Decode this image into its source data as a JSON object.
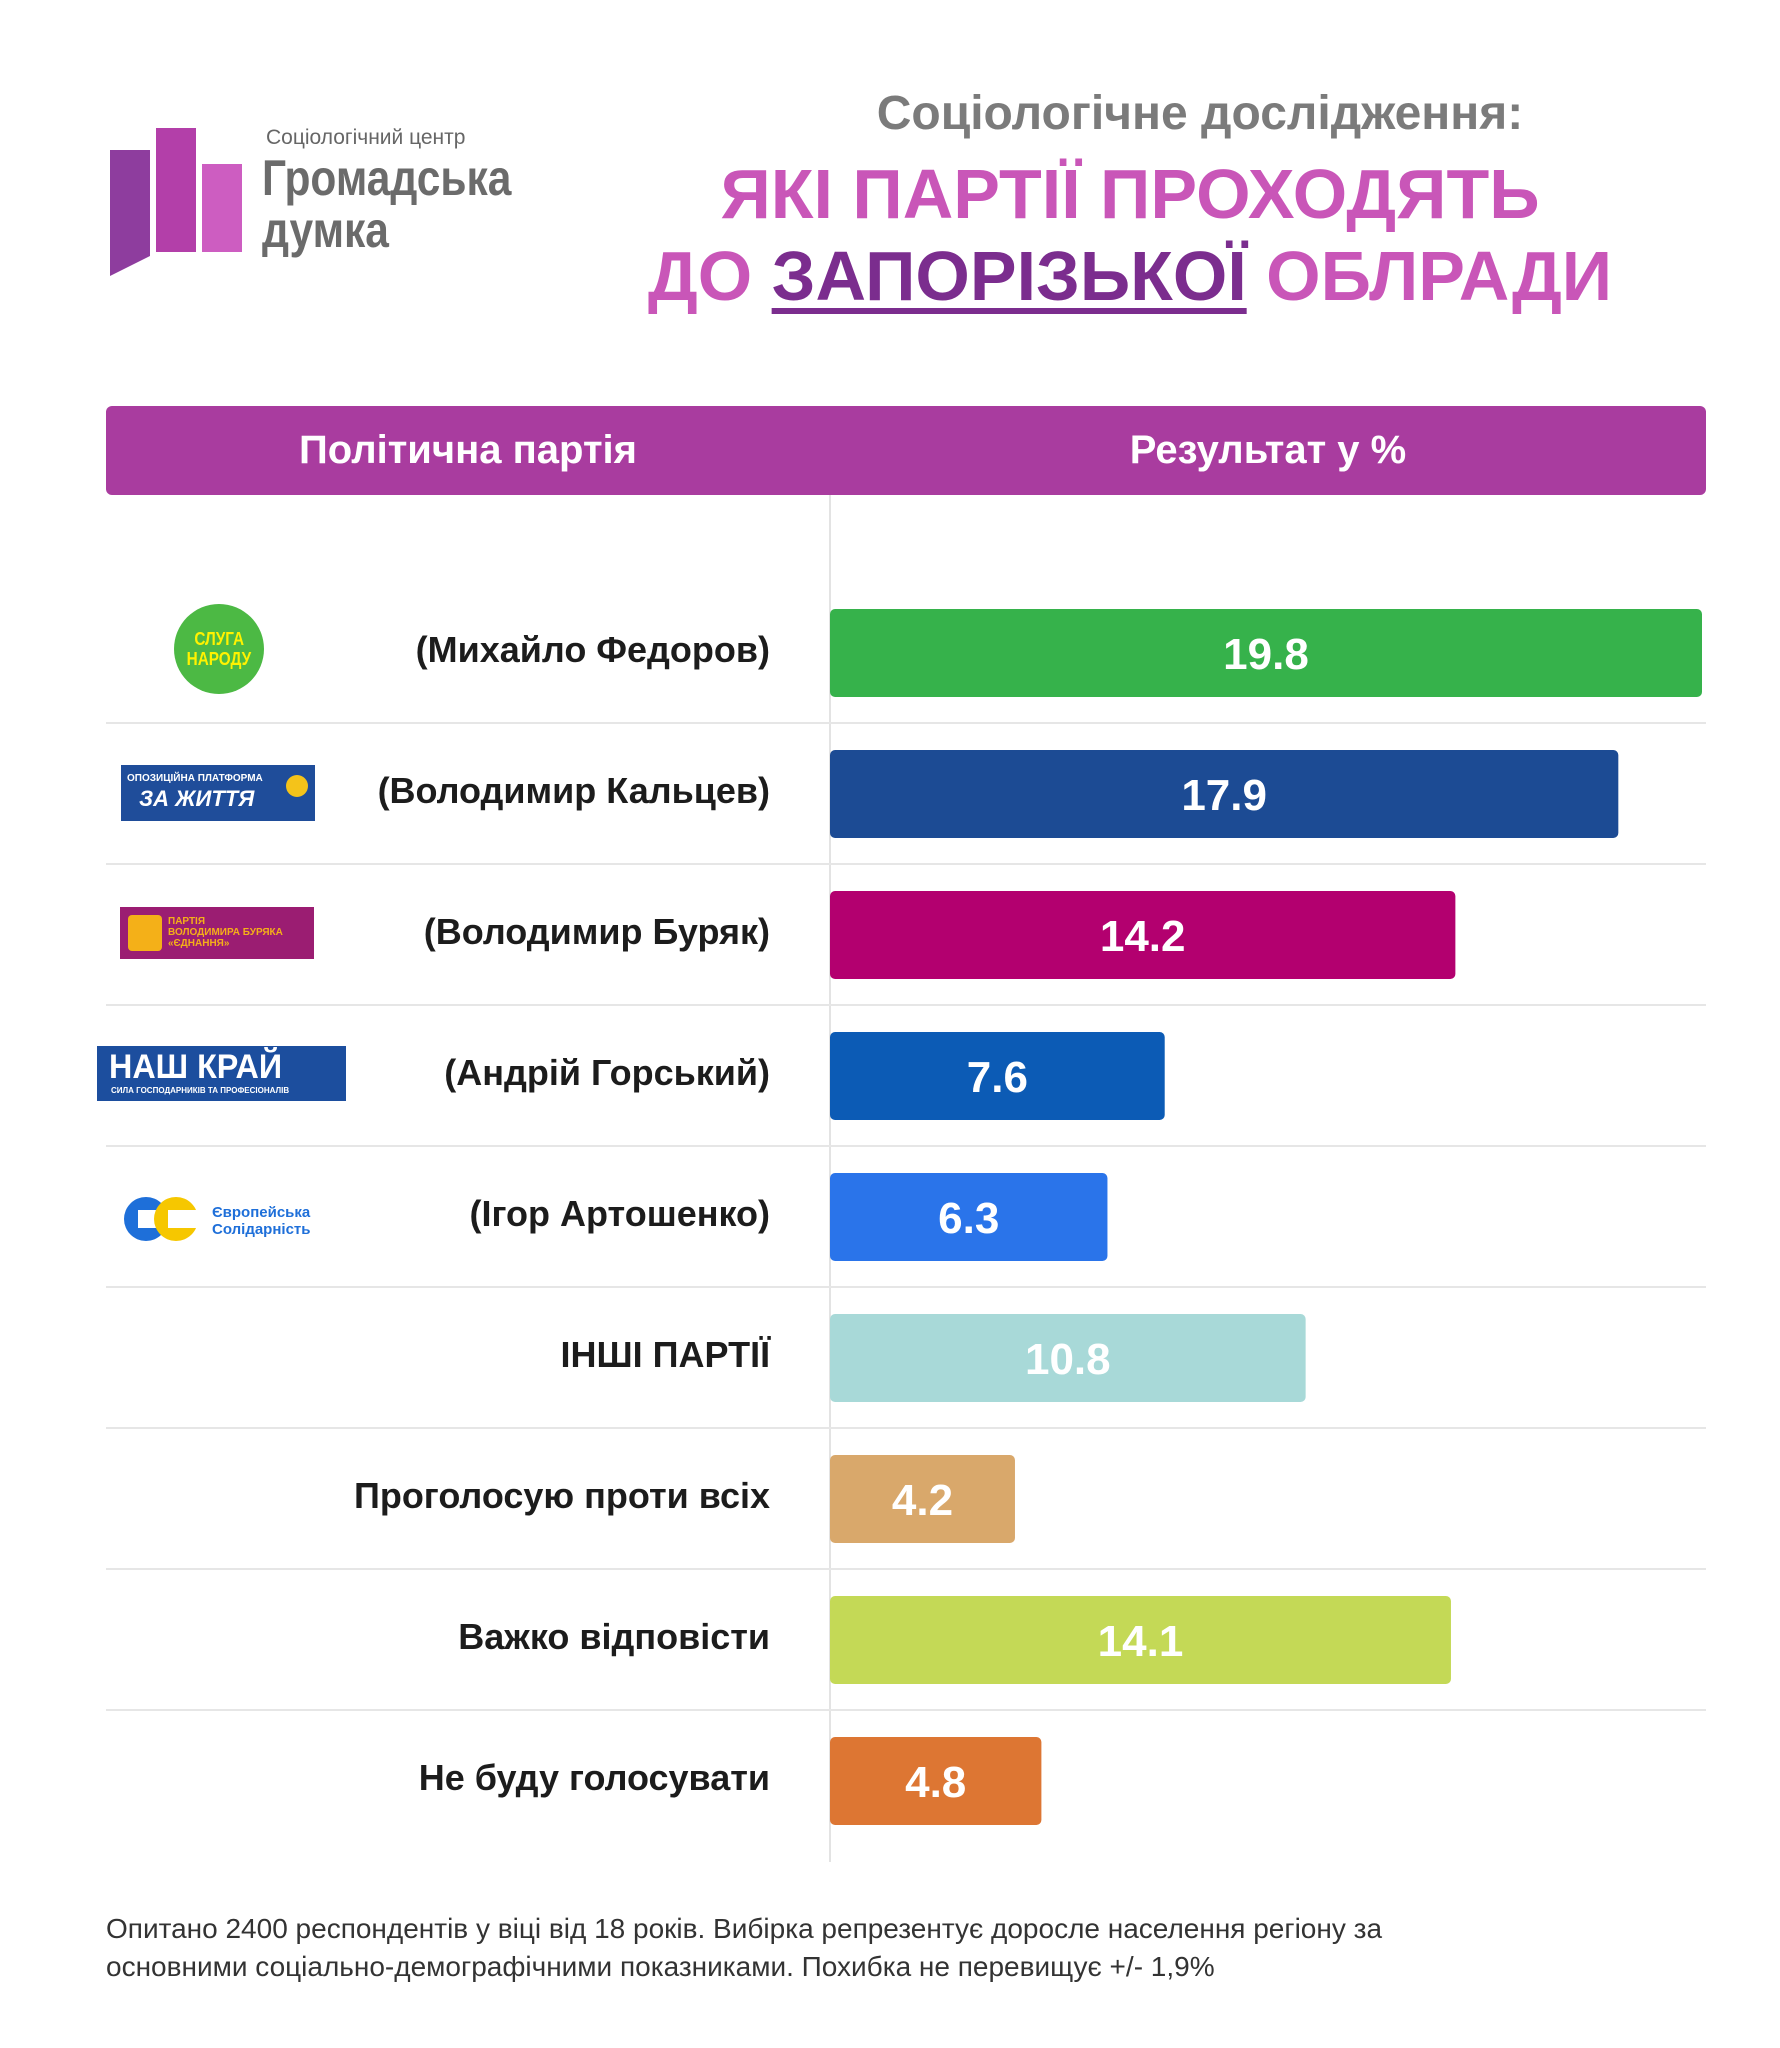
{
  "brand": {
    "subtitle": "Соціологічний центр",
    "name_line1": "Громадська",
    "name_line2": "думка",
    "colors": [
      "#8e3d9e",
      "#b33fa9",
      "#cd5dc1"
    ]
  },
  "title": {
    "line1": "Соціологічне дослідження:",
    "line2": "ЯКІ ПАРТІЇ ПРОХОДЯТЬ",
    "line3_prefix": "ДО ",
    "line3_highlight": "ЗАПОРІЗЬКОЇ",
    "line3_suffix": " ОБЛРАДИ"
  },
  "table_header": {
    "party": "Політична партія",
    "result": "Результат у %"
  },
  "logos": {
    "sluha": {
      "line1": "СЛУГА",
      "line2": "НАРОДУ",
      "icon": "sluha-narodu-logo"
    },
    "opzzh": {
      "line1": "ОПОЗИЦІЙНА ПЛАТФОРМА",
      "line2": "ЗА ЖИТТЯ",
      "icon": "opzzh-logo"
    },
    "yednannya": {
      "line1": "ПАРТІЯ",
      "line2": "ВОЛОДИМИРА БУРЯКА",
      "line3": "«ЄДНАННЯ»",
      "icon": "yednannya-logo"
    },
    "nashkrai": {
      "line1": "НАШ КРАЙ",
      "line2": "СИЛА ГОСПОДАРНИКІВ ТА ПРОФЕСІОНАЛІВ",
      "icon": "nash-krai-logo"
    },
    "es": {
      "line1": "Європейська",
      "line2": "Солідарність",
      "icon": "es-logo"
    }
  },
  "chart_data": {
    "type": "bar",
    "orientation": "horizontal",
    "xlim": [
      0,
      19.8
    ],
    "categories": [
      "(Михайло Федоров)",
      "(Володимир Кальцев)",
      "(Володимир Буряк)",
      "(Андрій Горський)",
      "(Ігор Артошенко)",
      "ІНШІ ПАРТІЇ",
      "Проголосую проти всіх",
      "Важко відповісти",
      "Не буду голосувати"
    ],
    "values": [
      19.8,
      17.9,
      14.2,
      7.6,
      6.3,
      10.8,
      4.2,
      14.1,
      4.8
    ],
    "value_labels": [
      "19.8",
      "17.9",
      "14.2",
      "7.6",
      "6.3",
      "10.8",
      "4.2",
      "14.1",
      "4.8"
    ],
    "colors": [
      "#36b24b",
      "#1c4b94",
      "#b3006f",
      "#0c5bb5",
      "#2a74ea",
      "#a8d9d8",
      "#d9a86b",
      "#c4d956",
      "#dd7633"
    ]
  },
  "footnote": {
    "line1": "Опитано 2400 респондентів у віці від 18 років. Вибірка репрезентує доросле населення регіону за",
    "line2": "основними соціально-демографічними показниками. Похибка не перевищує +/- 1,9%"
  }
}
